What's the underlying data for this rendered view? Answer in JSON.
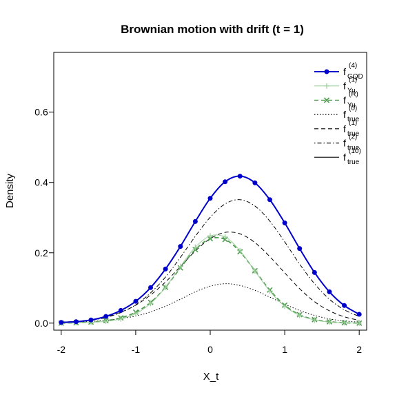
{
  "chart_data": {
    "type": "line",
    "title": "Brownian motion with drift (t = 1)",
    "xlabel": "X_t",
    "ylabel": "Density",
    "xlim": [
      -2.1,
      2.1
    ],
    "ylim": [
      -0.02,
      0.77
    ],
    "x_ticks": [
      "-2",
      "-1",
      "0",
      "1",
      "2"
    ],
    "y_ticks": [
      "0.0",
      "0.2",
      "0.4",
      "0.6"
    ],
    "x_tick_values": [
      -2,
      -1,
      0,
      1,
      2
    ],
    "y_tick_values": [
      0.0,
      0.2,
      0.4,
      0.6
    ],
    "grid": false,
    "legend_position": "top-right",
    "legend": [
      {
        "base": "f",
        "sup": "(4)",
        "sub": "GQD",
        "color": "#0000CD",
        "line": "solid",
        "marker": "filled-circle"
      },
      {
        "base": "f",
        "sup": "(1)",
        "sub": "Yu",
        "color": "#9ACD9A",
        "line": "solid",
        "marker": "plus"
      },
      {
        "base": "f",
        "sup": "(R)",
        "sub": "Yu",
        "color": "#4E9A4E",
        "line": "dashed",
        "marker": "cross"
      },
      {
        "base": "f",
        "sup": "(0)",
        "sub": "true",
        "color": "#000000",
        "line": "dotted",
        "marker": "none"
      },
      {
        "base": "f",
        "sup": "(1)",
        "sub": "true",
        "color": "#000000",
        "line": "dashed",
        "marker": "none"
      },
      {
        "base": "f",
        "sup": "(2)",
        "sub": "true",
        "color": "#000000",
        "line": "dotdash",
        "marker": "none"
      },
      {
        "base": "f",
        "sup": "(10)",
        "sub": "true",
        "color": "#000000",
        "line": "solid",
        "marker": "none"
      }
    ],
    "series": [
      {
        "legend_index": 0,
        "x": [
          -2.0,
          -1.8,
          -1.6,
          -1.4,
          -1.2,
          -1.0,
          -0.8,
          -0.6,
          -0.4,
          -0.2,
          0.0,
          0.2,
          0.4,
          0.6,
          0.8,
          1.0,
          1.2,
          1.4,
          1.6,
          1.8,
          2.0
        ],
        "y": [
          0.002,
          0.004,
          0.009,
          0.019,
          0.036,
          0.062,
          0.101,
          0.154,
          0.218,
          0.289,
          0.355,
          0.402,
          0.418,
          0.399,
          0.351,
          0.285,
          0.212,
          0.144,
          0.089,
          0.05,
          0.025
        ]
      },
      {
        "legend_index": 1,
        "x": [
          -2.0,
          -1.8,
          -1.6,
          -1.4,
          -1.2,
          -1.0,
          -0.8,
          -0.6,
          -0.4,
          -0.2,
          0.0,
          0.2,
          0.4,
          0.6,
          0.8,
          1.0,
          1.2,
          1.4,
          1.6,
          1.8,
          2.0
        ],
        "y": [
          0.0,
          0.001,
          0.002,
          0.005,
          0.012,
          0.027,
          0.056,
          0.102,
          0.161,
          0.216,
          0.248,
          0.245,
          0.206,
          0.148,
          0.091,
          0.048,
          0.022,
          0.009,
          0.003,
          0.001,
          0.0
        ]
      },
      {
        "legend_index": 2,
        "x": [
          -2.0,
          -1.8,
          -1.6,
          -1.4,
          -1.2,
          -1.0,
          -0.8,
          -0.6,
          -0.4,
          -0.2,
          0.0,
          0.2,
          0.4,
          0.6,
          0.8,
          1.0,
          1.2,
          1.4,
          1.6,
          1.8,
          2.0
        ],
        "y": [
          0.0,
          0.001,
          0.003,
          0.007,
          0.015,
          0.031,
          0.059,
          0.102,
          0.157,
          0.209,
          0.24,
          0.238,
          0.203,
          0.149,
          0.094,
          0.051,
          0.024,
          0.01,
          0.004,
          0.001,
          0.0
        ]
      },
      {
        "legend_index": 3,
        "x": [
          -2.0,
          -1.8,
          -1.6,
          -1.4,
          -1.2,
          -1.0,
          -0.8,
          -0.6,
          -0.4,
          -0.2,
          0.0,
          0.2,
          0.4,
          0.6,
          0.8,
          1.0,
          1.2,
          1.4,
          1.6,
          1.8,
          2.0
        ],
        "y": [
          0.002,
          0.003,
          0.005,
          0.008,
          0.013,
          0.02,
          0.032,
          0.048,
          0.068,
          0.089,
          0.105,
          0.112,
          0.107,
          0.093,
          0.074,
          0.054,
          0.036,
          0.022,
          0.012,
          0.006,
          0.003
        ]
      },
      {
        "legend_index": 4,
        "x": [
          -2.0,
          -1.8,
          -1.6,
          -1.4,
          -1.2,
          -1.0,
          -0.8,
          -0.6,
          -0.4,
          -0.2,
          0.0,
          0.2,
          0.4,
          0.6,
          0.8,
          1.0,
          1.2,
          1.4,
          1.6,
          1.8,
          2.0
        ],
        "y": [
          0.003,
          0.005,
          0.01,
          0.018,
          0.031,
          0.051,
          0.08,
          0.117,
          0.161,
          0.205,
          0.24,
          0.258,
          0.254,
          0.229,
          0.189,
          0.143,
          0.098,
          0.061,
          0.035,
          0.018,
          0.008
        ]
      },
      {
        "legend_index": 5,
        "x": [
          -2.0,
          -1.8,
          -1.6,
          -1.4,
          -1.2,
          -1.0,
          -0.8,
          -0.6,
          -0.4,
          -0.2,
          0.0,
          0.2,
          0.4,
          0.6,
          0.8,
          1.0,
          1.2,
          1.4,
          1.6,
          1.8,
          2.0
        ],
        "y": [
          0.002,
          0.004,
          0.008,
          0.016,
          0.03,
          0.052,
          0.086,
          0.131,
          0.187,
          0.247,
          0.301,
          0.339,
          0.351,
          0.333,
          0.29,
          0.231,
          0.168,
          0.112,
          0.068,
          0.038,
          0.019
        ]
      },
      {
        "legend_index": 6,
        "x": [
          -2.0,
          -1.8,
          -1.6,
          -1.4,
          -1.2,
          -1.0,
          -0.8,
          -0.6,
          -0.4,
          -0.2,
          0.0,
          0.2,
          0.4,
          0.6,
          0.8,
          1.0,
          1.2,
          1.4,
          1.6,
          1.8,
          2.0
        ],
        "y": [
          0.002,
          0.004,
          0.009,
          0.019,
          0.036,
          0.062,
          0.101,
          0.154,
          0.218,
          0.289,
          0.355,
          0.402,
          0.418,
          0.399,
          0.351,
          0.285,
          0.212,
          0.144,
          0.089,
          0.05,
          0.025
        ]
      }
    ]
  }
}
